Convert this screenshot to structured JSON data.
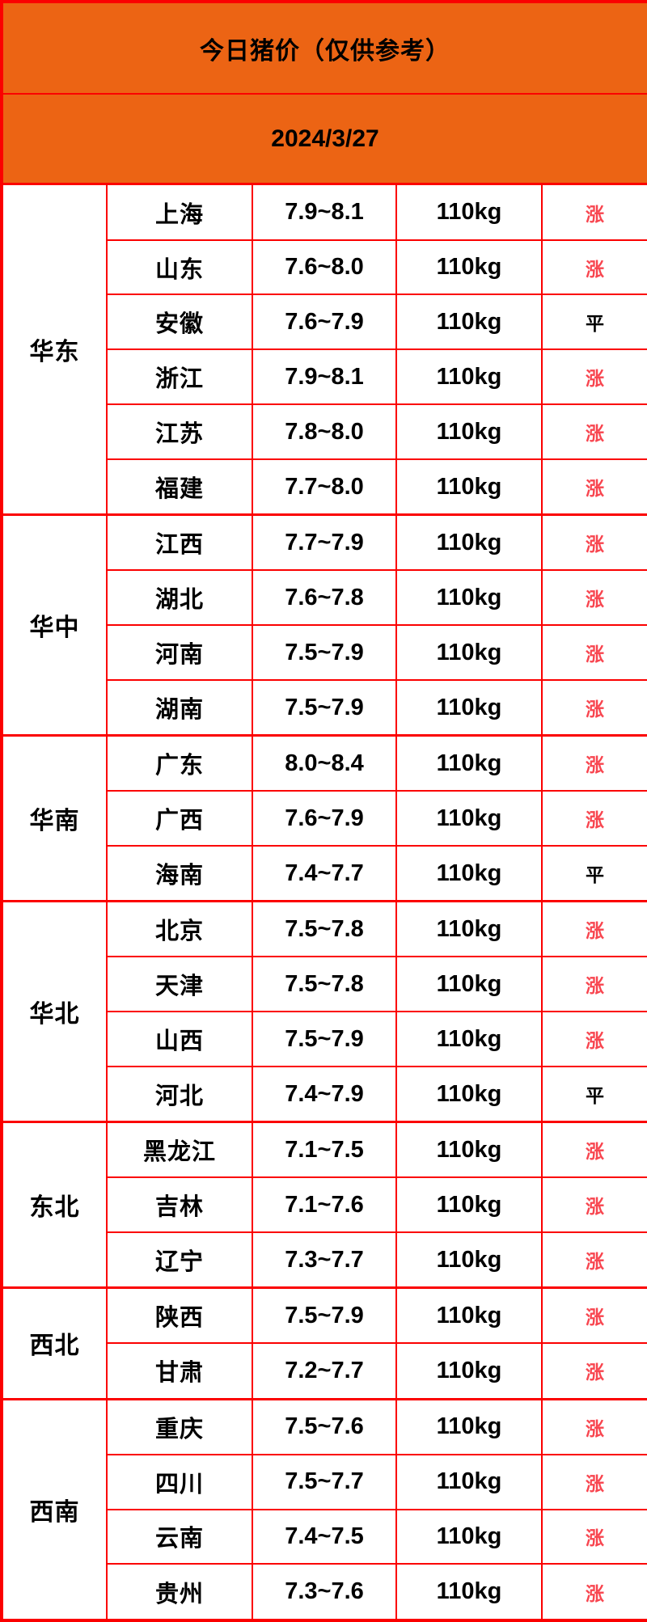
{
  "chart_data": {
    "type": "table",
    "title": "今日猪价（仅供参考）",
    "date": "2024/3/27",
    "legend": {
      "up_symbol": "涨",
      "flat_symbol": "平"
    },
    "regions": [
      {
        "name": "华东",
        "rows": [
          {
            "province": "上海",
            "price": "7.9~8.1",
            "weight": "110kg",
            "trend": "涨"
          },
          {
            "province": "山东",
            "price": "7.6~8.0",
            "weight": "110kg",
            "trend": "涨"
          },
          {
            "province": "安徽",
            "price": "7.6~7.9",
            "weight": "110kg",
            "trend": "平"
          },
          {
            "province": "浙江",
            "price": "7.9~8.1",
            "weight": "110kg",
            "trend": "涨"
          },
          {
            "province": "江苏",
            "price": "7.8~8.0",
            "weight": "110kg",
            "trend": "涨"
          },
          {
            "province": "福建",
            "price": "7.7~8.0",
            "weight": "110kg",
            "trend": "涨"
          }
        ]
      },
      {
        "name": "华中",
        "rows": [
          {
            "province": "江西",
            "price": "7.7~7.9",
            "weight": "110kg",
            "trend": "涨"
          },
          {
            "province": "湖北",
            "price": "7.6~7.8",
            "weight": "110kg",
            "trend": "涨"
          },
          {
            "province": "河南",
            "price": "7.5~7.9",
            "weight": "110kg",
            "trend": "涨"
          },
          {
            "province": "湖南",
            "price": "7.5~7.9",
            "weight": "110kg",
            "trend": "涨"
          }
        ]
      },
      {
        "name": "华南",
        "rows": [
          {
            "province": "广东",
            "price": "8.0~8.4",
            "weight": "110kg",
            "trend": "涨"
          },
          {
            "province": "广西",
            "price": "7.6~7.9",
            "weight": "110kg",
            "trend": "涨"
          },
          {
            "province": "海南",
            "price": "7.4~7.7",
            "weight": "110kg",
            "trend": "平"
          }
        ]
      },
      {
        "name": "华北",
        "rows": [
          {
            "province": "北京",
            "price": "7.5~7.8",
            "weight": "110kg",
            "trend": "涨"
          },
          {
            "province": "天津",
            "price": "7.5~7.8",
            "weight": "110kg",
            "trend": "涨"
          },
          {
            "province": "山西",
            "price": "7.5~7.9",
            "weight": "110kg",
            "trend": "涨"
          },
          {
            "province": "河北",
            "price": "7.4~7.9",
            "weight": "110kg",
            "trend": "平"
          }
        ]
      },
      {
        "name": "东北",
        "rows": [
          {
            "province": "黑龙江",
            "price": "7.1~7.5",
            "weight": "110kg",
            "trend": "涨"
          },
          {
            "province": "吉林",
            "price": "7.1~7.6",
            "weight": "110kg",
            "trend": "涨"
          },
          {
            "province": "辽宁",
            "price": "7.3~7.7",
            "weight": "110kg",
            "trend": "涨"
          }
        ]
      },
      {
        "name": "西北",
        "rows": [
          {
            "province": "陕西",
            "price": "7.5~7.9",
            "weight": "110kg",
            "trend": "涨"
          },
          {
            "province": "甘肃",
            "price": "7.2~7.7",
            "weight": "110kg",
            "trend": "涨"
          }
        ]
      },
      {
        "name": "西南",
        "rows": [
          {
            "province": "重庆",
            "price": "7.5~7.6",
            "weight": "110kg",
            "trend": "涨"
          },
          {
            "province": "四川",
            "price": "7.5~7.7",
            "weight": "110kg",
            "trend": "涨"
          },
          {
            "province": "云南",
            "price": "7.4~7.5",
            "weight": "110kg",
            "trend": "涨"
          },
          {
            "province": "贵州",
            "price": "7.3~7.6",
            "weight": "110kg",
            "trend": "涨"
          }
        ]
      }
    ]
  },
  "colors": {
    "header_orange": "#EC6414",
    "border_red": "#FB0000",
    "trend_up_red": "#F8454F",
    "text_black": "#000000"
  }
}
